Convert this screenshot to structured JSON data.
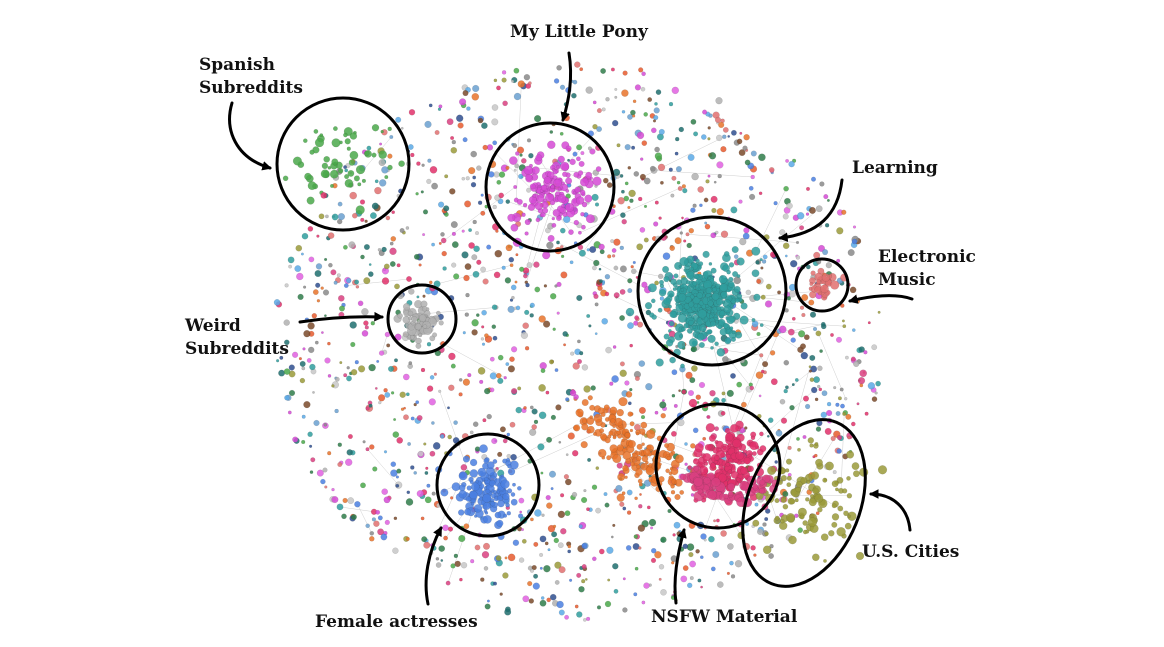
{
  "diagram": {
    "type": "network-graph",
    "background_color": "#ffffff",
    "annotation_color": "#000000",
    "edge_color": "#cfcfcf",
    "node_palette": [
      "#b0b0b0",
      "#c7c7c7",
      "#d54ad5",
      "#e060e0",
      "#4aa84a",
      "#2f7d4a",
      "#5aa9e6",
      "#4a7fe0",
      "#e65a2e",
      "#e8732a",
      "#e0306a",
      "#d94080",
      "#2f9e9e",
      "#9a9a3a",
      "#7a4a2a",
      "#2f4f8f",
      "#1f6f6f",
      "#e07070",
      "#6aa0d0",
      "#8a8a8a"
    ],
    "clusters": [
      {
        "id": "spanish",
        "label_lines": [
          "Spanish",
          "Subreddits"
        ],
        "color": "#4aa84a"
      },
      {
        "id": "pony",
        "label_lines": [
          "My Little Pony"
        ],
        "color": "#d54ad5"
      },
      {
        "id": "learning",
        "label_lines": [
          "Learning"
        ],
        "color": "#2f9e9e"
      },
      {
        "id": "electronic",
        "label_lines": [
          "Electronic",
          "Music"
        ],
        "color": "#e07070"
      },
      {
        "id": "weird",
        "label_lines": [
          "Weird",
          "Subreddits"
        ],
        "color": "#b0b0b0"
      },
      {
        "id": "actresses",
        "label_lines": [
          "Female actresses"
        ],
        "color": "#4a7fe0"
      },
      {
        "id": "nsfw",
        "label_lines": [
          "NSFW Material"
        ],
        "color": "#e0306a"
      },
      {
        "id": "cities",
        "label_lines": [
          "U.S. Cities"
        ],
        "color": "#9a9a3a"
      }
    ]
  }
}
